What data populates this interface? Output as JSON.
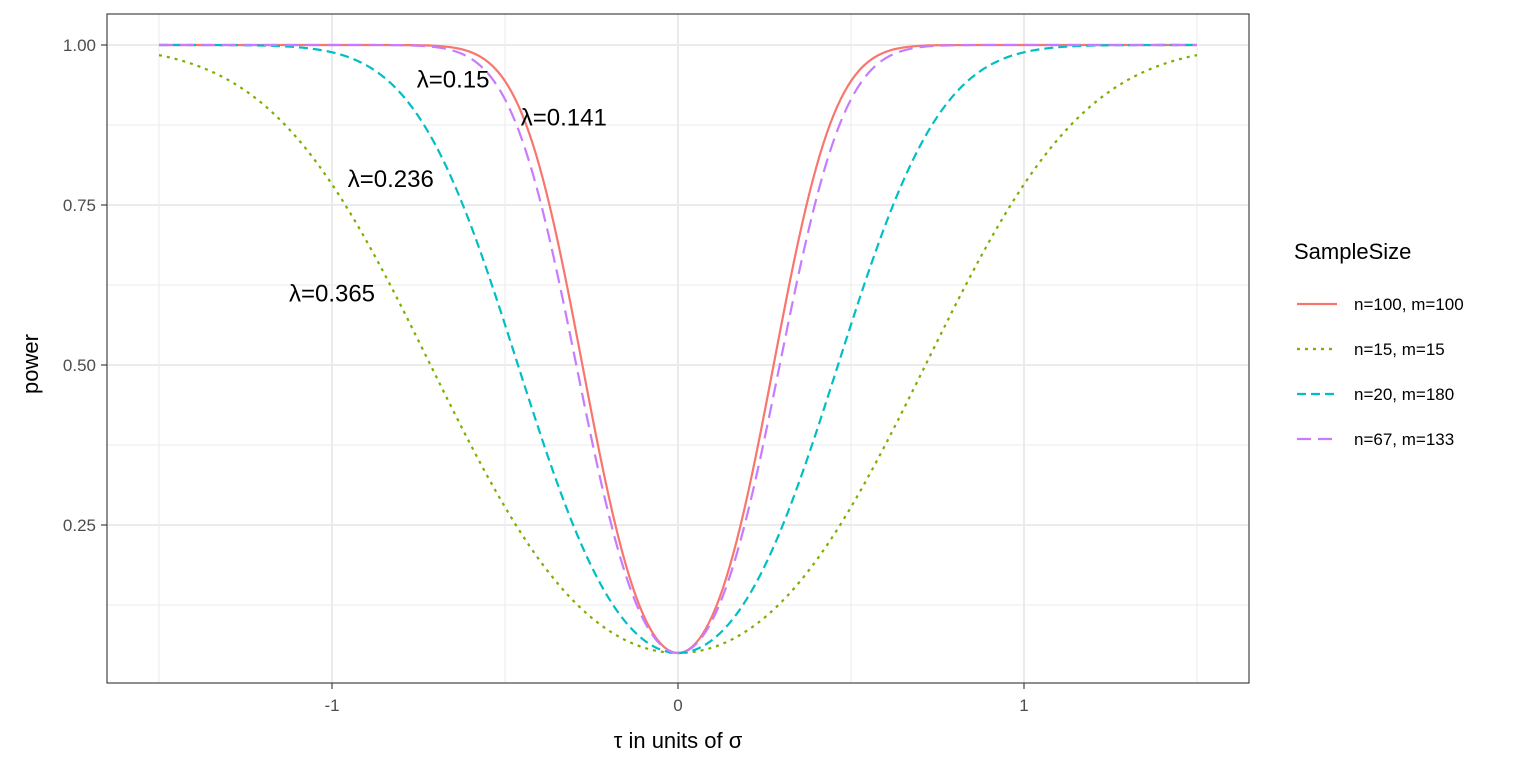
{
  "chart_data": {
    "type": "line",
    "xlabel": "τ in units of σ",
    "ylabel": "power",
    "xlim": [
      -1.65,
      1.65
    ],
    "ylim": [
      0.0,
      1.05
    ],
    "x_ticks": [
      -1,
      0,
      1
    ],
    "x_tick_labels": [
      "-1",
      "0",
      "1"
    ],
    "y_ticks": [
      0.25,
      0.5,
      0.75,
      1.0
    ],
    "y_tick_labels": [
      "0.25",
      "0.50",
      "0.75",
      "1.00"
    ],
    "grid": true,
    "legend": {
      "title": "SampleSize",
      "position": "right"
    },
    "series": [
      {
        "name": "n=100, m=100",
        "lambda": 0.141,
        "color": "#F8766D",
        "dash": "solid"
      },
      {
        "name": "n=15, m=15",
        "lambda": 0.365,
        "color": "#7CAE00",
        "dash": "dotted"
      },
      {
        "name": "n=20, m=180",
        "lambda": 0.236,
        "color": "#00BFC4",
        "dash": "dashed"
      },
      {
        "name": "n=67, m=133",
        "lambda": 0.15,
        "color": "#C77CFF",
        "dash": "longdash"
      }
    ],
    "annotations": [
      {
        "text": "λ=0.15",
        "x": -0.65,
        "y": 0.946
      },
      {
        "text": "λ=0.141",
        "x": -0.33,
        "y": 0.887
      },
      {
        "text": "λ=0.236",
        "x": -0.83,
        "y": 0.791
      },
      {
        "text": "λ=0.365",
        "x": -1.0,
        "y": 0.612
      }
    ],
    "curve_x_range": [
      -1.5,
      1.5
    ],
    "min_power": 0.05
  }
}
